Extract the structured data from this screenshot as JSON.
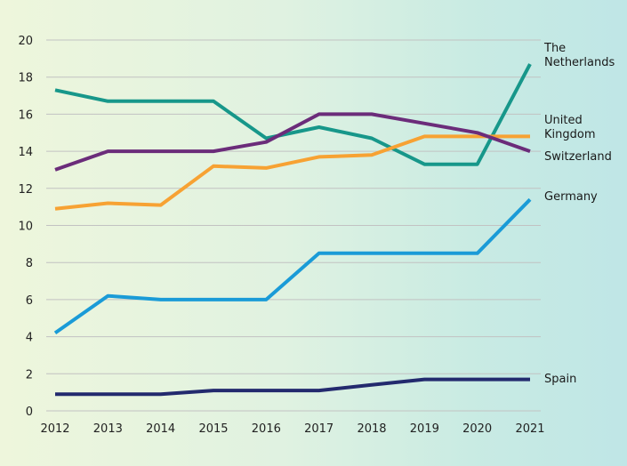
{
  "chart_data": {
    "type": "line",
    "title": "",
    "xlabel": "",
    "ylabel": "",
    "x": [
      "2012",
      "2013",
      "2014",
      "2015",
      "2016",
      "2017",
      "2018",
      "2019",
      "2020",
      "2021"
    ],
    "ylim": [
      0,
      20
    ],
    "yticks": [
      0,
      2,
      4,
      6,
      8,
      10,
      12,
      14,
      16,
      18,
      20
    ],
    "grid": true,
    "legend": "direct labels at right end of lines",
    "series": [
      {
        "name": "The Netherlands",
        "label_lines": [
          "The",
          "Netherlands"
        ],
        "color": "#17978a",
        "values": [
          17.3,
          16.7,
          16.7,
          16.7,
          14.7,
          15.3,
          14.7,
          13.3,
          13.3,
          18.7
        ]
      },
      {
        "name": "United Kingdom",
        "label_lines": [
          "United",
          "Kingdom"
        ],
        "color": "#f7a233",
        "values": [
          10.9,
          11.2,
          11.1,
          13.2,
          13.1,
          13.7,
          13.8,
          14.8,
          14.8,
          14.8
        ]
      },
      {
        "name": "Switzerland",
        "label_lines": [
          "Switzerland"
        ],
        "color": "#6b2c7a",
        "values": [
          13.0,
          14.0,
          14.0,
          14.0,
          14.5,
          16.0,
          16.0,
          15.5,
          15.0,
          14.0
        ]
      },
      {
        "name": "Germany",
        "label_lines": [
          "Germany"
        ],
        "color": "#1a9bd7",
        "values": [
          4.2,
          6.2,
          6.0,
          6.0,
          6.0,
          8.5,
          8.5,
          8.5,
          8.5,
          11.4
        ]
      },
      {
        "name": "Spain",
        "label_lines": [
          "Spain"
        ],
        "color": "#232a6e",
        "values": [
          0.9,
          0.9,
          0.9,
          1.1,
          1.1,
          1.1,
          1.4,
          1.7,
          1.7,
          1.7
        ]
      }
    ]
  }
}
